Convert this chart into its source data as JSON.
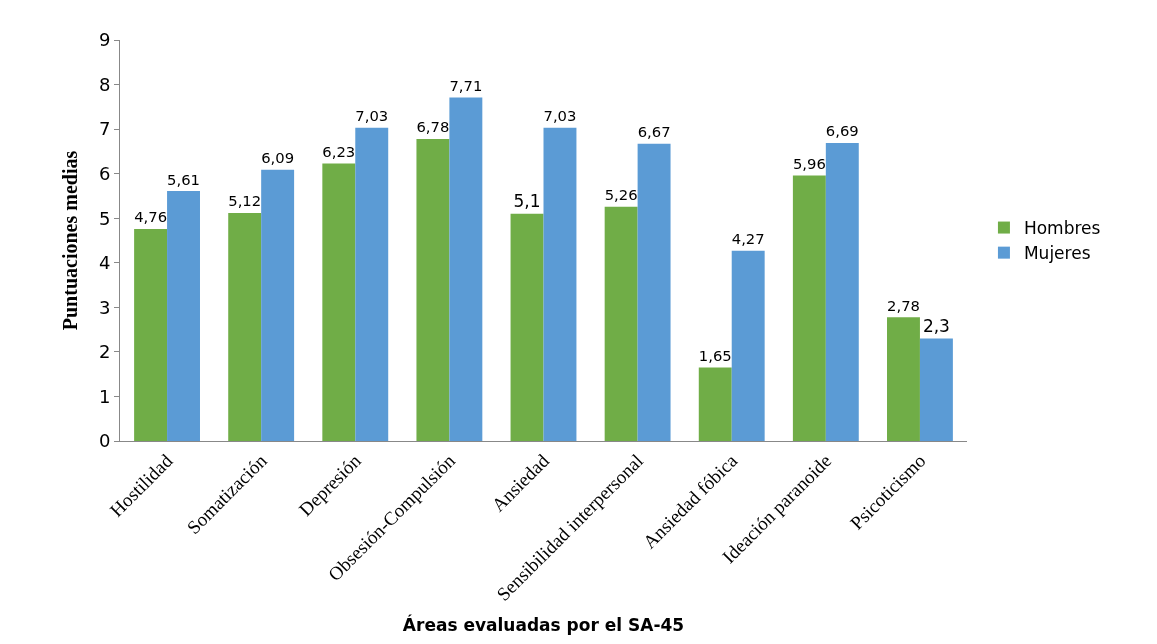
{
  "chart_data": {
    "type": "bar",
    "xlabel": "Áreas evaluadas por el SA-45",
    "ylabel": "Puntuaciones medias",
    "categories": [
      "Hostilidad",
      "Somatización",
      "Depresión",
      "Obsesión-Compulsión",
      "Ansiedad",
      "Sensibilidad interpersonal",
      "Ansiedad fóbica",
      "Ideación paranoide",
      "Psicoticismo"
    ],
    "series": [
      {
        "name": "Hombres",
        "color": "#70ad47",
        "values": [
          4.76,
          5.12,
          6.23,
          6.78,
          5.1,
          5.26,
          1.65,
          5.96,
          2.78
        ],
        "value_labels": [
          "4,76",
          "5,12",
          "6,23",
          "6,78",
          "5,1",
          "5,26",
          "1,65",
          "5,96",
          "2,78"
        ]
      },
      {
        "name": "Mujeres",
        "color": "#5b9bd5",
        "values": [
          5.61,
          6.09,
          7.03,
          7.71,
          7.03,
          6.67,
          4.27,
          6.69,
          2.3
        ],
        "value_labels": [
          "5,61",
          "6,09",
          "7,03",
          "7,71",
          "7,03",
          "6,67",
          "4,27",
          "6,69",
          "2,3"
        ]
      }
    ],
    "ylim": [
      0,
      9
    ],
    "yticks": [
      0,
      1,
      2,
      3,
      4,
      5,
      6,
      7,
      8,
      9
    ],
    "legend": "right"
  }
}
